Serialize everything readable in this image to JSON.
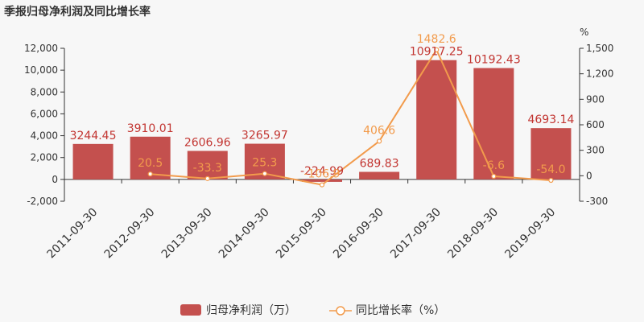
{
  "chart_data": {
    "type": "bar",
    "title": "季报归母净利润及同比增长率",
    "right_axis_unit": "%",
    "categories": [
      "2011-09-30",
      "2012-09-30",
      "2013-09-30",
      "2014-09-30",
      "2015-09-30",
      "2016-09-30",
      "2017-09-30",
      "2018-09-30",
      "2019-09-30"
    ],
    "series": [
      {
        "name": "归母净利润（万）",
        "type": "bar",
        "axis": "left",
        "values": [
          3244.45,
          3910.01,
          2606.96,
          3265.97,
          -224.99,
          689.83,
          10917.25,
          10192.43,
          4693.14
        ],
        "labels": [
          "3244.45",
          "3910.01",
          "2606.96",
          "3265.97",
          "-224.99",
          "689.83",
          "10917.25",
          "10192.43",
          "4693.14"
        ]
      },
      {
        "name": "同比增长率（%）",
        "type": "line",
        "axis": "right",
        "values": [
          null,
          20.5,
          -33.3,
          25.3,
          -106.9,
          406.6,
          1482.6,
          -6.6,
          -54.0
        ],
        "labels": [
          "",
          "20.5",
          "-33.3",
          "25.3",
          "-106.9",
          "406.6",
          "1482.6",
          "-6.6",
          "-54.0"
        ]
      }
    ],
    "left_axis": {
      "min": -2000,
      "max": 12000,
      "ticks": [
        -2000,
        0,
        2000,
        4000,
        6000,
        8000,
        10000,
        12000
      ],
      "tick_labels": [
        "-2,000",
        "0",
        "2,000",
        "4,000",
        "6,000",
        "8,000",
        "10,000",
        "12,000"
      ]
    },
    "right_axis": {
      "min": -300,
      "max": 1500,
      "ticks": [
        -300,
        0,
        300,
        600,
        900,
        1200,
        1500
      ],
      "tick_labels": [
        "-300",
        "0",
        "300",
        "600",
        "900",
        "1,200",
        "1,500"
      ]
    },
    "colors": {
      "bar": "#c23531",
      "bar_fill": "#c4504e",
      "line": "#f29b4c",
      "axis": "#333333"
    },
    "legend_position": "bottom-center"
  }
}
